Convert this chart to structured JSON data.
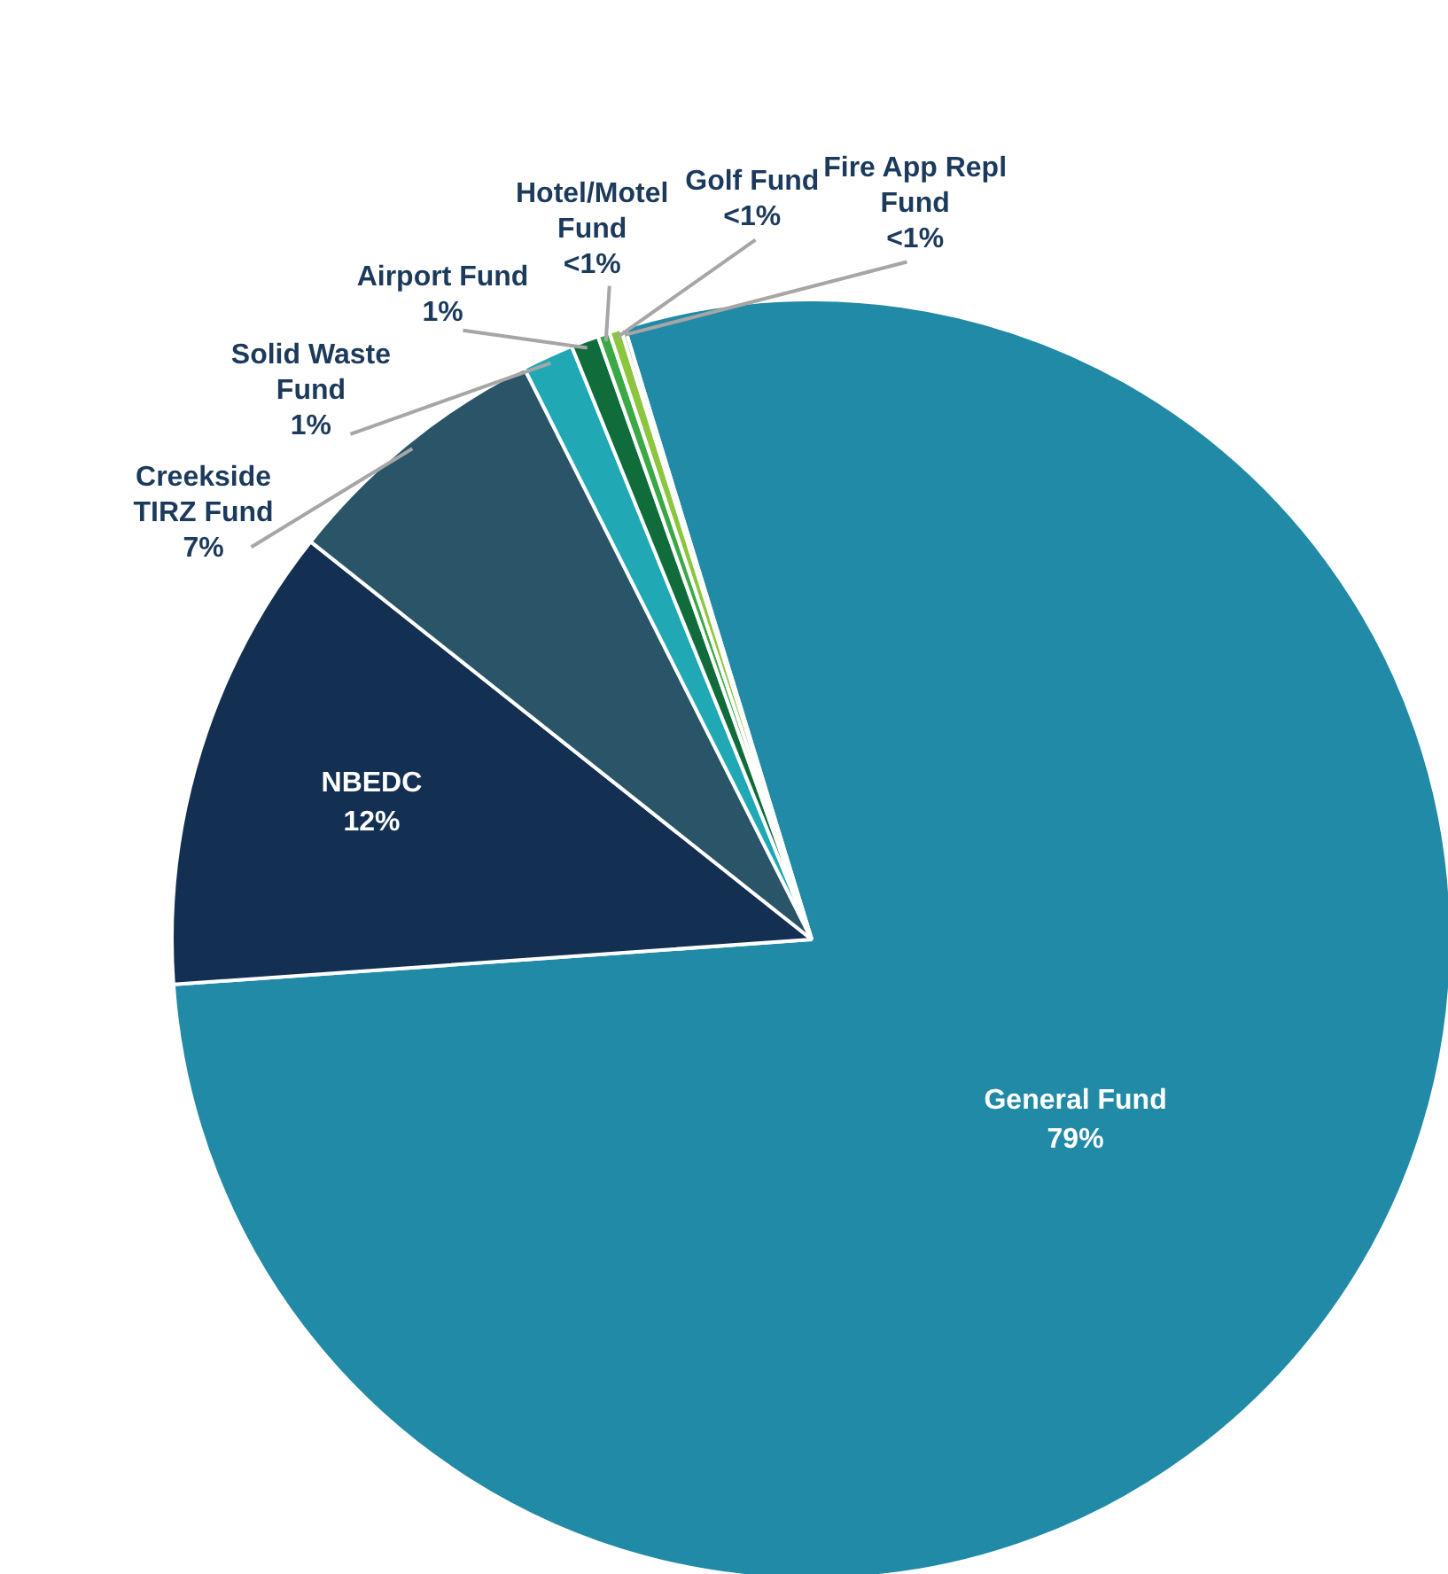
{
  "chart_data": {
    "type": "pie",
    "categories": [
      "General Fund",
      "NBEDC",
      "Creekside TIRZ Fund",
      "Solid Waste Fund",
      "Airport Fund",
      "Hotel/Motel Fund",
      "Golf Fund",
      "Fire App Repl Fund"
    ],
    "values": [
      78.6,
      11.8,
      6.9,
      1.3,
      0.7,
      0.3,
      0.3,
      0.1
    ],
    "value_labels": [
      "79%",
      "12%",
      "7%",
      "1%",
      "1%",
      "<1%",
      "<1%",
      "<1%"
    ],
    "colors": [
      "#218aa6",
      "#132f52",
      "#2a5468",
      "#20a9b5",
      "#116c3b",
      "#3aa845",
      "#8cc63f",
      "#8a8a8a"
    ],
    "legend": false
  }
}
